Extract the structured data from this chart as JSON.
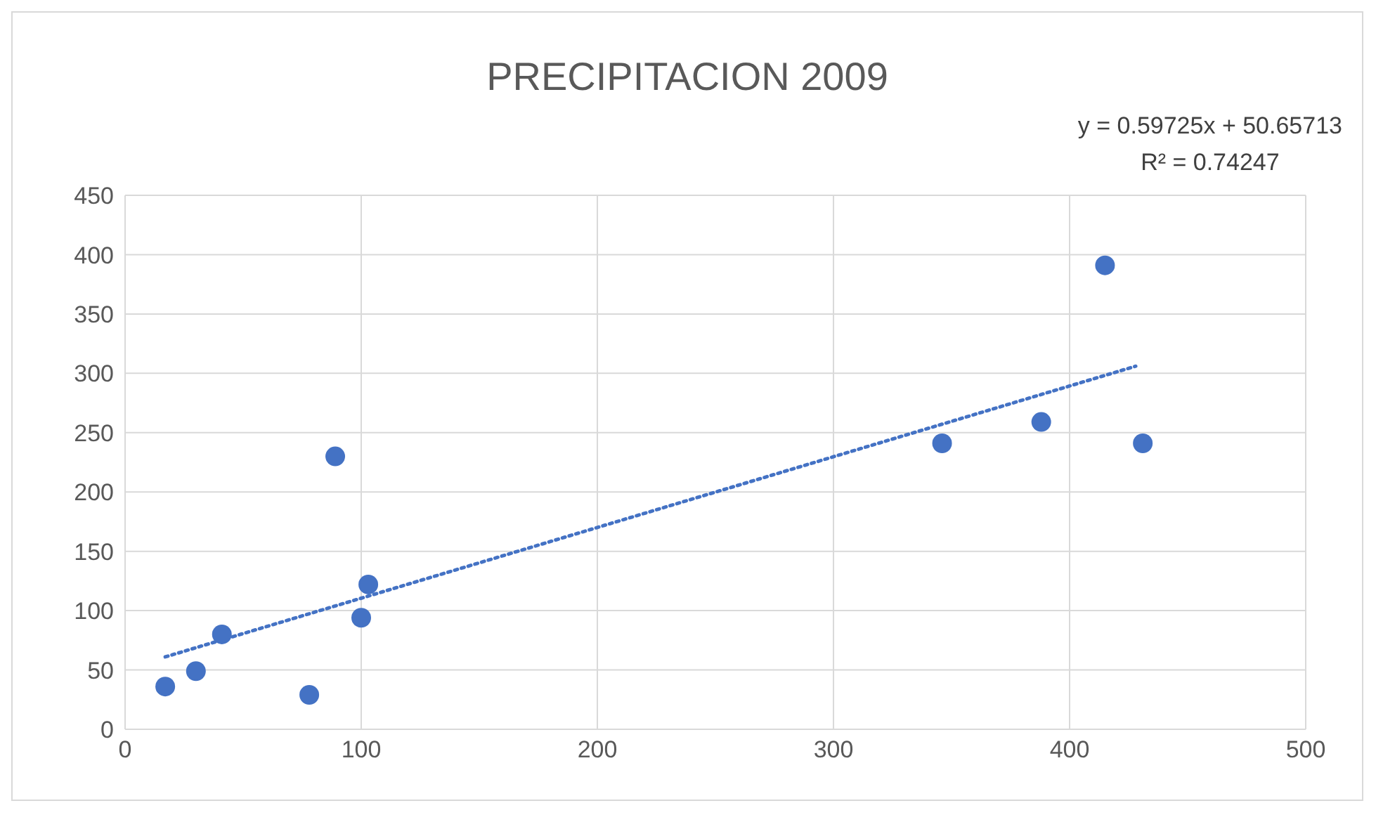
{
  "chart_data": {
    "type": "scatter",
    "title": "PRECIPITACION 2009",
    "series": [
      {
        "color": "#4472c4",
        "marker": "circle",
        "x": [
          17,
          30,
          41,
          78,
          89,
          100,
          103,
          346,
          388,
          415,
          431
        ],
        "values": [
          36,
          49,
          80,
          29,
          230,
          94,
          122,
          241,
          259,
          391,
          241
        ]
      },
      {
        "type": "line",
        "color": "#4472c4",
        "marker": "none",
        "line_style": "dotted",
        "x": [
          17,
          428
        ],
        "values": [
          61,
          306
        ]
      }
    ],
    "xlim": [
      0,
      500
    ],
    "xticks": [
      0,
      100,
      200,
      300,
      400,
      500
    ],
    "ylim": [
      0,
      450
    ],
    "yticks": [
      0,
      50,
      100,
      150,
      200,
      250,
      300,
      350,
      400,
      450
    ],
    "grid": true,
    "annotations": [
      "y = 0.59725x + 50.65713",
      "R² = 0.74247"
    ]
  }
}
